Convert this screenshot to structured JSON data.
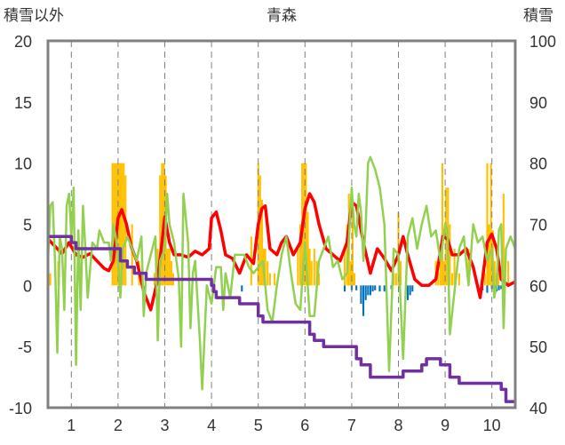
{
  "chart_data": {
    "type": "bar+line",
    "title": "青森",
    "left_axis_label": "積雪以外",
    "right_axis_label": "積雪",
    "left_ylim": [
      -10,
      20
    ],
    "right_ylim": [
      40,
      100
    ],
    "left_ticks": [
      "20",
      "15",
      "10",
      "5",
      "0",
      "-5",
      "-10"
    ],
    "right_ticks": [
      "100",
      "90",
      "80",
      "70",
      "60",
      "50",
      "40"
    ],
    "x_tick_labels": [
      "1",
      "2",
      "3",
      "4",
      "5",
      "6",
      "7",
      "8",
      "9",
      "10"
    ],
    "x_range": [
      0.5,
      10.5
    ],
    "grid": "dashed vertical at each integer x; none horizontal",
    "colors": {
      "red_series": "#ff0000",
      "green_series": "#92d050",
      "purple_series": "#7030a0",
      "bar_positive": "#ffc000",
      "bar_negative": "#0070c0",
      "frame": "#808080",
      "grid": "#7f7f7f"
    },
    "series": [
      {
        "axis": "left",
        "color": "#ff0000",
        "style": "line",
        "x": [
          0.5,
          0.65,
          0.8,
          0.95,
          1.1,
          1.25,
          1.4,
          1.55,
          1.7,
          1.8,
          1.9,
          2.0,
          2.08,
          2.18,
          2.28,
          2.4,
          2.55,
          2.7,
          2.85,
          3.0,
          3.1,
          3.2,
          3.35,
          3.5,
          3.65,
          3.8,
          3.95,
          4.0,
          4.1,
          4.2,
          4.3,
          4.45,
          4.6,
          4.75,
          4.9,
          5.0,
          5.08,
          5.15,
          5.25,
          5.4,
          5.5,
          5.6,
          5.75,
          5.9,
          6.0,
          6.1,
          6.2,
          6.3,
          6.45,
          6.6,
          6.75,
          6.9,
          7.0,
          7.1,
          7.25,
          7.4,
          7.55,
          7.7,
          7.85,
          8.0,
          8.1,
          8.2,
          8.35,
          8.5,
          8.65,
          8.8,
          8.95,
          9.05,
          9.15,
          9.3,
          9.45,
          9.6,
          9.75,
          9.9,
          10.0,
          10.1,
          10.2,
          10.35,
          10.5
        ],
        "y": [
          3.8,
          3.2,
          2.6,
          3.5,
          2.5,
          2.3,
          2.6,
          2.0,
          1.4,
          1.2,
          2.0,
          5.5,
          6.2,
          5.0,
          3.2,
          2.0,
          -0.5,
          -2.0,
          0.5,
          5.6,
          3.5,
          2.5,
          2.5,
          2.3,
          2.8,
          2.5,
          3.0,
          5.5,
          6.0,
          4.5,
          2.5,
          2.2,
          1.0,
          2.5,
          1.8,
          5.0,
          6.3,
          6.5,
          3.0,
          2.5,
          3.5,
          4.0,
          2.5,
          3.5,
          6.3,
          7.5,
          6.8,
          5.0,
          3.0,
          2.5,
          2.0,
          3.5,
          6.8,
          6.5,
          3.5,
          1.0,
          3.0,
          2.2,
          1.2,
          2.5,
          4.0,
          2.5,
          0.5,
          0.0,
          0.0,
          0.5,
          4.0,
          3.8,
          2.5,
          2.5,
          3.0,
          1.5,
          -1.0,
          3.5,
          4.2,
          3.0,
          0.5,
          0.0,
          0.3
        ]
      },
      {
        "axis": "left",
        "color": "#92d050",
        "style": "line",
        "x": [
          0.5,
          0.55,
          0.6,
          0.65,
          0.7,
          0.75,
          0.8,
          0.85,
          0.9,
          0.95,
          1.0,
          1.05,
          1.1,
          1.15,
          1.2,
          1.25,
          1.3,
          1.35,
          1.45,
          1.55,
          1.6,
          1.7,
          1.8,
          1.85,
          1.9,
          1.95,
          2.0,
          2.05,
          2.1,
          2.2,
          2.3,
          2.4,
          2.5,
          2.55,
          2.6,
          2.7,
          2.8,
          2.85,
          2.9,
          3.0,
          3.05,
          3.1,
          3.2,
          3.3,
          3.35,
          3.4,
          3.5,
          3.55,
          3.6,
          3.65,
          3.75,
          3.8,
          3.9,
          4.0,
          4.1,
          4.2,
          4.25,
          4.3,
          4.4,
          4.5,
          4.6,
          4.7,
          4.8,
          4.9,
          5.0,
          5.1,
          5.2,
          5.3,
          5.4,
          5.5,
          5.6,
          5.7,
          5.8,
          5.9,
          6.0,
          6.1,
          6.2,
          6.3,
          6.4,
          6.5,
          6.6,
          6.7,
          6.8,
          6.9,
          7.0,
          7.05,
          7.1,
          7.15,
          7.2,
          7.25,
          7.3,
          7.35,
          7.4,
          7.5,
          7.6,
          7.7,
          7.8,
          7.9,
          8.0,
          8.1,
          8.2,
          8.3,
          8.4,
          8.5,
          8.6,
          8.7,
          8.8,
          8.9,
          9.0,
          9.05,
          9.1,
          9.2,
          9.3,
          9.4,
          9.5,
          9.6,
          9.7,
          9.8,
          9.9,
          10.0,
          10.05,
          10.1,
          10.15,
          10.2,
          10.25,
          10.3,
          10.4,
          10.5
        ],
        "y": [
          2.0,
          6.5,
          6.8,
          2.0,
          -5.5,
          4.0,
          3.0,
          -2.0,
          6.5,
          7.5,
          4.0,
          8.0,
          -6.5,
          4.5,
          -2.0,
          6.5,
          3.0,
          -1.0,
          3.5,
          3.0,
          4.5,
          3.5,
          3.5,
          2.0,
          5.0,
          4.0,
          2.0,
          -1.0,
          3.0,
          4.0,
          3.0,
          2.0,
          4.0,
          -2.5,
          1.0,
          2.5,
          4.0,
          -4.5,
          2.0,
          3.0,
          7.5,
          5.0,
          3.5,
          0.5,
          -5.0,
          7.5,
          3.5,
          -3.5,
          1.0,
          2.0,
          -4.5,
          -8.5,
          0.0,
          -1.5,
          1.5,
          1.5,
          -2.0,
          1.0,
          -1.0,
          2.5,
          2.5,
          2.5,
          1.5,
          1.0,
          1.5,
          2.0,
          -2.0,
          -3.0,
          0.0,
          2.5,
          4.0,
          1.0,
          -1.5,
          -2.0,
          3.5,
          -2.5,
          -2.5,
          2.0,
          3.0,
          4.0,
          1.5,
          2.0,
          0.5,
          1.0,
          8.0,
          5.0,
          4.0,
          7.5,
          6.0,
          2.0,
          5.0,
          10.0,
          10.5,
          9.5,
          8.0,
          5.0,
          -7.0,
          3.0,
          2.5,
          -6.0,
          4.0,
          5.5,
          3.0,
          5.0,
          6.5,
          4.0,
          4.5,
          2.0,
          5.0,
          4.5,
          -4.0,
          -0.5,
          3.0,
          4.0,
          0.0,
          5.0,
          3.5,
          4.0,
          2.0,
          3.0,
          -1.0,
          0.0,
          4.5,
          5.0,
          -3.5,
          3.0,
          4.0,
          3.0
        ]
      },
      {
        "axis": "right",
        "color": "#7030a0",
        "style": "step",
        "x": [
          0.5,
          0.95,
          1.0,
          1.1,
          1.2,
          2.0,
          2.05,
          2.2,
          2.35,
          2.5,
          2.6,
          3.0,
          3.1,
          3.9,
          4.0,
          4.05,
          4.1,
          4.5,
          4.6,
          4.8,
          5.0,
          5.1,
          5.2,
          6.0,
          6.1,
          6.2,
          6.3,
          6.4,
          6.5,
          7.0,
          7.1,
          7.2,
          7.3,
          7.4,
          7.8,
          8.0,
          8.1,
          8.2,
          8.4,
          8.5,
          8.6,
          8.8,
          8.9,
          9.1,
          9.3,
          9.5,
          9.6,
          10.0,
          10.2,
          10.3,
          10.5
        ],
        "y": [
          68,
          68,
          67,
          66,
          66,
          66,
          64,
          63,
          62,
          62,
          61,
          61,
          61,
          61,
          60,
          59,
          58,
          58,
          57,
          57,
          55,
          54,
          54,
          54,
          52,
          51,
          51,
          50,
          50,
          50,
          48,
          47,
          47,
          45,
          45,
          45,
          46,
          46,
          46,
          47,
          48,
          48,
          47,
          45,
          44,
          44,
          44,
          44,
          43,
          41,
          41
        ]
      },
      {
        "axis": "left",
        "color": "#ffc000",
        "style": "bar_positive",
        "x": [
          0.55,
          0.72,
          0.85,
          1.88,
          1.92,
          1.96,
          2.0,
          2.04,
          2.08,
          2.12,
          2.16,
          2.3,
          2.45,
          2.78,
          2.85,
          2.9,
          2.94,
          2.98,
          3.02,
          3.06,
          3.1,
          3.14,
          3.18,
          4.85,
          5.0,
          5.04,
          5.08,
          5.12,
          5.15,
          5.2,
          5.25,
          5.35,
          5.85,
          5.9,
          5.94,
          5.98,
          6.02,
          6.06,
          6.1,
          6.14,
          6.2,
          6.25,
          6.3,
          6.85,
          6.9,
          6.94,
          6.98,
          7.02,
          7.06,
          7.9,
          7.95,
          8.0,
          8.05,
          8.8,
          8.85,
          8.9,
          8.94,
          8.98,
          9.02,
          9.06,
          9.1,
          9.15,
          9.2,
          9.3,
          9.5,
          9.85,
          9.9,
          9.94,
          9.98,
          10.02,
          10.06,
          10.1,
          10.14,
          10.25,
          10.35
        ],
        "y": [
          1.0,
          2.0,
          1.0,
          10,
          10,
          10,
          10,
          10,
          10,
          10,
          9.0,
          5.0,
          2.0,
          1.0,
          3.0,
          9.0,
          10,
          10,
          9.0,
          3.0,
          3.0,
          2.0,
          1.0,
          4.0,
          10,
          9.0,
          7.0,
          3.0,
          3.0,
          2.0,
          1.0,
          1.0,
          3.0,
          5.0,
          10,
          10,
          10,
          6.0,
          3.0,
          2.0,
          3.0,
          2.0,
          1.0,
          3.0,
          5.0,
          7.5,
          2.0,
          7.0,
          1.0,
          1.0,
          1.0,
          6.0,
          2.0,
          2.0,
          1.0,
          3.0,
          10,
          2.0,
          8.0,
          8.0,
          5.0,
          1.0,
          3.0,
          1.0,
          3.0,
          1.0,
          10,
          5.0,
          10,
          4.5,
          2.0,
          1.0,
          1.0,
          7.5,
          2.0
        ]
      },
      {
        "axis": "left",
        "color": "#0070c0",
        "style": "bar_negative",
        "x": [
          4.65,
          6.85,
          7.0,
          7.1,
          7.2,
          7.25,
          7.3,
          7.35,
          7.4,
          7.45,
          7.5,
          7.6,
          7.7,
          7.85,
          8.2,
          8.25,
          8.3,
          9.8,
          9.9,
          10.0,
          10.05,
          10.1,
          10.15,
          10.2
        ],
        "y": [
          -0.5,
          -0.5,
          -0.4,
          -0.4,
          -1.5,
          -2.5,
          -1.2,
          -0.8,
          -0.8,
          -0.5,
          -0.4,
          -0.5,
          -0.5,
          -0.3,
          -1.2,
          -0.8,
          -0.5,
          -0.4,
          -0.6,
          -0.3,
          -0.4,
          -0.5,
          -0.4,
          -0.3
        ]
      }
    ]
  }
}
